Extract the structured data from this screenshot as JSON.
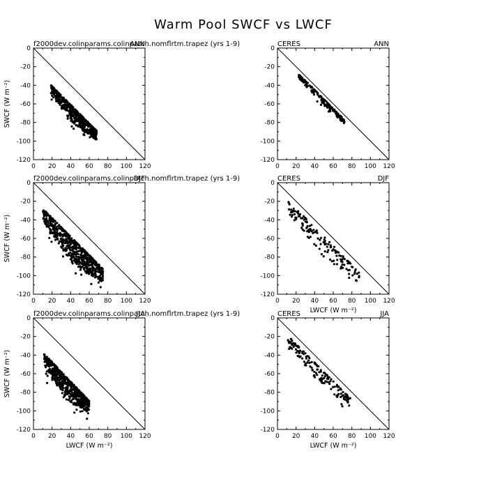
{
  "figure": {
    "title": "Warm Pool SWCF vs LWCF"
  },
  "chart_data": [
    {
      "type": "scatter",
      "left_label": "f2000dev.colinparams.colinpatch.nomflrtm.trapez (yrs 1-9)",
      "right_label": "ANN",
      "xlabel": "",
      "ylabel": "SWCF (W m⁻²)",
      "xlim": [
        0,
        120
      ],
      "ylim": [
        -120,
        0
      ],
      "xticks": [
        "0",
        "20",
        "40",
        "60",
        "80",
        "100",
        "120"
      ],
      "yticks": [
        "0",
        "-20",
        "-40",
        "-60",
        "-80",
        "-100",
        "-120"
      ],
      "one_to_one_line": true,
      "cloud": {
        "x_range": [
          19,
          68
        ],
        "y_at_x_min": [
          -40,
          -58
        ],
        "slope": -1.0,
        "n": 520,
        "seed": 11
      }
    },
    {
      "type": "scatter",
      "left_label": "CERES",
      "right_label": "ANN",
      "xlabel": "",
      "ylabel": "",
      "xlim": [
        0,
        120
      ],
      "ylim": [
        -120,
        0
      ],
      "xticks": [
        "0",
        "20",
        "40",
        "60",
        "80",
        "100",
        "120"
      ],
      "yticks": [
        "0",
        "-20",
        "-40",
        "-60",
        "-80",
        "-100",
        "-120"
      ],
      "one_to_one_line": true,
      "cloud": {
        "x_range": [
          22,
          72
        ],
        "y_at_x_min": [
          -27,
          -35
        ],
        "slope": -1.0,
        "n": 160,
        "seed": 23
      }
    },
    {
      "type": "scatter",
      "left_label": "f2000dev.colinparams.colinpatch.nomflrtm.trapez (yrs 1-9)",
      "right_label": "DJF",
      "xlabel": "",
      "ylabel": "SWCF (W m⁻²)",
      "xlim": [
        0,
        120
      ],
      "ylim": [
        -120,
        0
      ],
      "xticks": [
        "0",
        "20",
        "40",
        "60",
        "80",
        "100",
        "120"
      ],
      "yticks": [
        "0",
        "-20",
        "-40",
        "-60",
        "-80",
        "-100",
        "-120"
      ],
      "one_to_one_line": true,
      "cloud": {
        "x_range": [
          10,
          75
        ],
        "y_at_x_min": [
          -28,
          -55
        ],
        "slope": -1.0,
        "n": 620,
        "seed": 37
      }
    },
    {
      "type": "scatter",
      "left_label": "CERES",
      "right_label": "DJF",
      "xlabel": "LWCF (W m⁻²)",
      "ylabel": "",
      "xlim": [
        0,
        120
      ],
      "ylim": [
        -120,
        0
      ],
      "xticks": [
        "0",
        "20",
        "40",
        "60",
        "80",
        "100",
        "120"
      ],
      "yticks": [
        "0",
        "-20",
        "-40",
        "-60",
        "-80",
        "-100",
        "-120"
      ],
      "one_to_one_line": true,
      "cloud": {
        "x_range": [
          10,
          88
        ],
        "y_at_x_min": [
          -18,
          -40
        ],
        "slope": -1.0,
        "n": 150,
        "seed": 41
      }
    },
    {
      "type": "scatter",
      "left_label": "f2000dev.colinparams.colinpatch.nomflrtm.trapez (yrs 1-9)",
      "right_label": "JJA",
      "xlabel": "LWCF (W m⁻²)",
      "ylabel": "SWCF (W m⁻²)",
      "xlim": [
        0,
        120
      ],
      "ylim": [
        -120,
        0
      ],
      "xticks": [
        "0",
        "20",
        "40",
        "60",
        "80",
        "100",
        "120"
      ],
      "yticks": [
        "0",
        "-20",
        "-40",
        "-60",
        "-80",
        "-100",
        "-120"
      ],
      "one_to_one_line": true,
      "cloud": {
        "x_range": [
          11,
          60
        ],
        "y_at_x_min": [
          -38,
          -62
        ],
        "slope": -1.05,
        "n": 600,
        "seed": 53
      }
    },
    {
      "type": "scatter",
      "left_label": "CERES",
      "right_label": "JJA",
      "xlabel": "LWCF (W m⁻²)",
      "ylabel": "",
      "xlim": [
        0,
        120
      ],
      "ylim": [
        -120,
        0
      ],
      "xticks": [
        "0",
        "20",
        "40",
        "60",
        "80",
        "100",
        "120"
      ],
      "yticks": [
        "0",
        "-20",
        "-40",
        "-60",
        "-80",
        "-100",
        "-120"
      ],
      "one_to_one_line": true,
      "cloud": {
        "x_range": [
          10,
          80
        ],
        "y_at_x_min": [
          -18,
          -35
        ],
        "slope": -1.0,
        "n": 160,
        "seed": 67
      }
    }
  ]
}
